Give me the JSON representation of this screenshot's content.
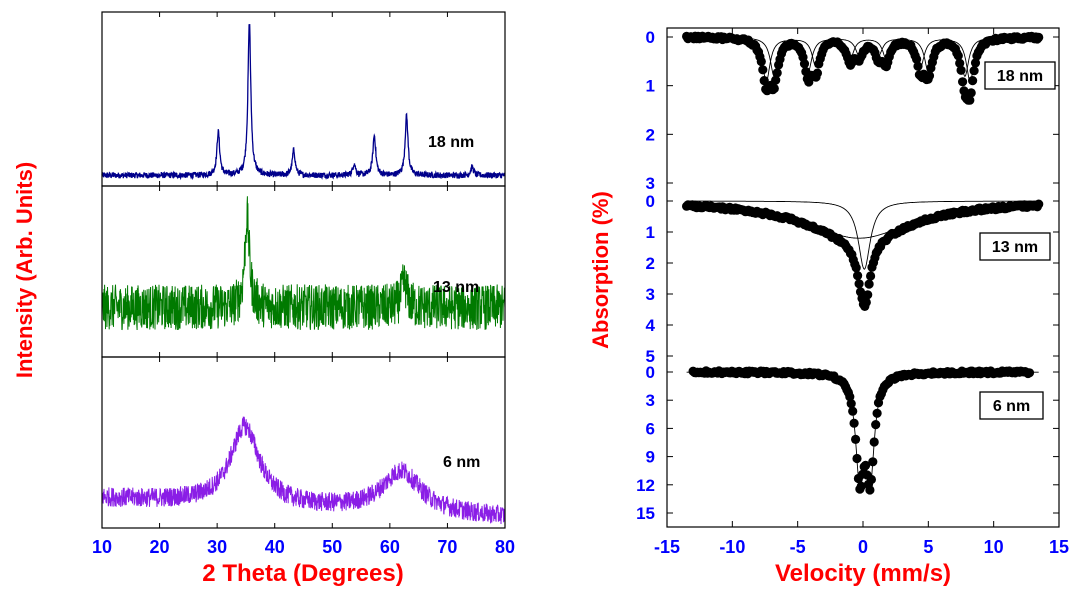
{
  "colors": {
    "axis_title": "#ff0000",
    "tick_label": "#0000ff",
    "frame": "#000000",
    "xrd_18nm": "#00008b",
    "xrd_13nm": "#007a00",
    "xrd_6nm": "#8a1ee6",
    "moss_points": "#000000"
  },
  "chart_data": [
    {
      "type": "line",
      "title": "",
      "xlabel": "2 Theta (Degrees)",
      "ylabel": "Intensity (Arb. Units)",
      "xlim": [
        10,
        80
      ],
      "xticks": [
        "10",
        "20",
        "30",
        "40",
        "50",
        "60",
        "70",
        "80"
      ],
      "y_ticks_shown": false,
      "series": [
        {
          "name": "18 nm",
          "noise": 0.018,
          "baseline": 0.04,
          "peaks": [
            {
              "x": 30.2,
              "height": 0.26,
              "width": 0.3
            },
            {
              "x": 35.6,
              "height": 0.92,
              "width": 0.3
            },
            {
              "x": 43.3,
              "height": 0.15,
              "width": 0.3
            },
            {
              "x": 53.8,
              "height": 0.07,
              "width": 0.3
            },
            {
              "x": 57.3,
              "height": 0.24,
              "width": 0.3
            },
            {
              "x": 62.9,
              "height": 0.36,
              "width": 0.3
            },
            {
              "x": 74.3,
              "height": 0.05,
              "width": 0.3
            }
          ]
        },
        {
          "name": "13 nm",
          "noise": 0.14,
          "baseline": 0.28,
          "peaks": [
            {
              "x": 35.2,
              "height": 0.55,
              "width": 0.5
            },
            {
              "x": 62.5,
              "height": 0.15,
              "width": 0.6
            }
          ]
        },
        {
          "name": "6 nm",
          "noise": 0.06,
          "baseline": 0.16,
          "peaks": [
            {
              "x": 34.8,
              "height": 0.48,
              "width": 3.0
            },
            {
              "x": 62.0,
              "height": 0.25,
              "width": 4.0
            }
          ],
          "slope": -0.12
        }
      ]
    },
    {
      "type": "scatter",
      "title": "",
      "xlabel": "Velocity (mm/s)",
      "ylabel": "Absorption (%)",
      "xlim": [
        -15,
        15
      ],
      "xticks": [
        "-15",
        "-10",
        "-5",
        "0",
        "5",
        "10",
        "15"
      ],
      "panels": [
        {
          "name": "18 nm",
          "ylim": [
            0,
            3
          ],
          "yticks": [
            "0",
            "1",
            "2",
            "3"
          ],
          "xrange": [
            -13.5,
            13.5
          ],
          "fit_components": [
            {
              "lines": [
                {
                  "x": -7.4,
                  "depth": 0.9,
                  "width": 0.35
                },
                {
                  "x": -4.2,
                  "depth": 0.7,
                  "width": 0.35
                },
                {
                  "x": -1.0,
                  "depth": 0.45,
                  "width": 0.35
                },
                {
                  "x": 1.8,
                  "depth": 0.45,
                  "width": 0.35
                },
                {
                  "x": 5.0,
                  "depth": 0.7,
                  "width": 0.35
                },
                {
                  "x": 8.2,
                  "depth": 0.9,
                  "width": 0.35
                }
              ]
            },
            {
              "lines": [
                {
                  "x": -6.8,
                  "depth": 0.8,
                  "width": 0.35
                },
                {
                  "x": -3.6,
                  "depth": 0.6,
                  "width": 0.35
                },
                {
                  "x": -0.3,
                  "depth": 0.35,
                  "width": 0.35
                },
                {
                  "x": 1.2,
                  "depth": 0.35,
                  "width": 0.35
                },
                {
                  "x": 4.4,
                  "depth": 0.6,
                  "width": 0.35
                },
                {
                  "x": 7.8,
                  "depth": 0.8,
                  "width": 0.35
                }
              ]
            }
          ]
        },
        {
          "name": "13 nm",
          "ylim": [
            0,
            5
          ],
          "yticks": [
            "0",
            "1",
            "2",
            "3",
            "4",
            "5"
          ],
          "xrange": [
            -13.5,
            13.5
          ],
          "fit_components": [
            {
              "lines": [
                {
                  "x": 0.1,
                  "depth": 2.2,
                  "width": 0.55
                }
              ]
            },
            {
              "lines": [
                {
                  "x": -0.3,
                  "depth": 1.2,
                  "width": 5.0
                },
                {
                  "x": 0.3,
                  "depth": 0.0,
                  "width": 1.0
                }
              ]
            }
          ]
        },
        {
          "name": "6 nm",
          "ylim": [
            0,
            15
          ],
          "yticks": [
            "0",
            "3",
            "6",
            "9",
            "12",
            "15"
          ],
          "xrange": [
            -13,
            12.8
          ],
          "fit_components": [
            {
              "lines": [
                {
                  "x": -0.25,
                  "depth": 10.5,
                  "width": 0.38
                },
                {
                  "x": 0.55,
                  "depth": 10.5,
                  "width": 0.38
                }
              ]
            }
          ]
        }
      ]
    }
  ]
}
